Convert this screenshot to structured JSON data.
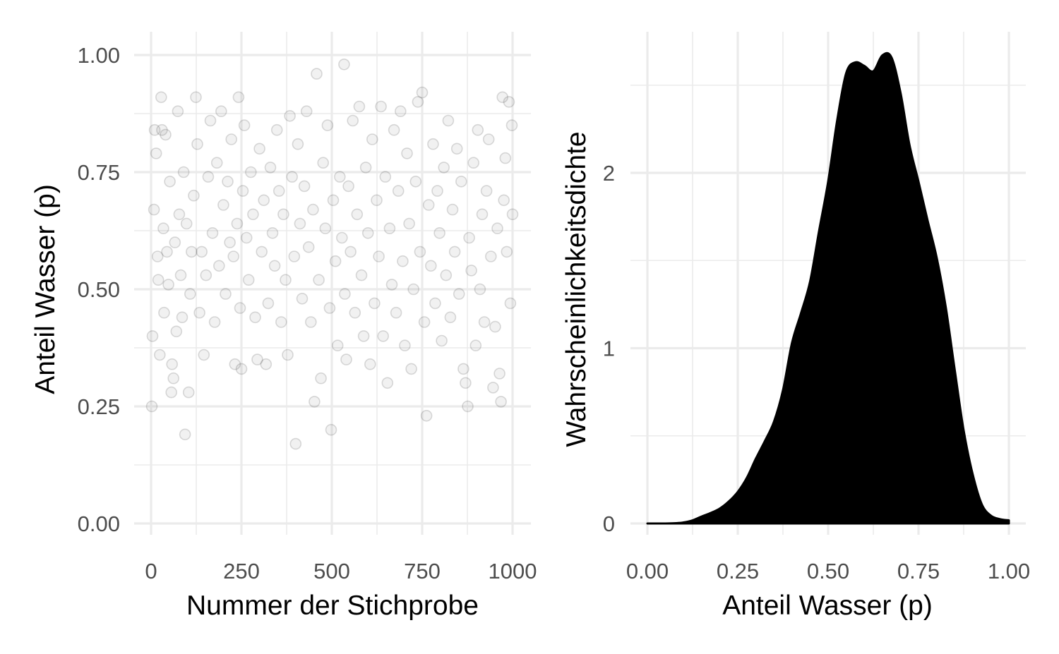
{
  "chart_data": [
    {
      "type": "scatter",
      "xlabel": "Nummer der Stichprobe",
      "ylabel": "Anteil Wasser  (p)",
      "xlim": [
        0,
        1000
      ],
      "ylim": [
        0,
        1
      ],
      "x_ticks": [
        "0",
        "250",
        "500",
        "750",
        "1000"
      ],
      "y_ticks": [
        "0.00",
        "0.25",
        "0.50",
        "0.75",
        "1.00"
      ],
      "grid": true,
      "point_opacity": 0.1,
      "sample_count": 1000,
      "points": [
        [
          2,
          0.25
        ],
        [
          4,
          0.4
        ],
        [
          8,
          0.67
        ],
        [
          10,
          0.84
        ],
        [
          14,
          0.79
        ],
        [
          18,
          0.57
        ],
        [
          20,
          0.52
        ],
        [
          24,
          0.36
        ],
        [
          28,
          0.91
        ],
        [
          30,
          0.84
        ],
        [
          34,
          0.63
        ],
        [
          36,
          0.45
        ],
        [
          40,
          0.83
        ],
        [
          44,
          0.58
        ],
        [
          48,
          0.51
        ],
        [
          52,
          0.73
        ],
        [
          56,
          0.28
        ],
        [
          58,
          0.34
        ],
        [
          62,
          0.31
        ],
        [
          66,
          0.6
        ],
        [
          70,
          0.41
        ],
        [
          74,
          0.88
        ],
        [
          78,
          0.66
        ],
        [
          82,
          0.53
        ],
        [
          86,
          0.44
        ],
        [
          90,
          0.75
        ],
        [
          94,
          0.19
        ],
        [
          98,
          0.64
        ],
        [
          104,
          0.28
        ],
        [
          108,
          0.49
        ],
        [
          112,
          0.58
        ],
        [
          118,
          0.7
        ],
        [
          124,
          0.91
        ],
        [
          128,
          0.81
        ],
        [
          134,
          0.45
        ],
        [
          140,
          0.58
        ],
        [
          146,
          0.36
        ],
        [
          152,
          0.53
        ],
        [
          158,
          0.74
        ],
        [
          164,
          0.86
        ],
        [
          170,
          0.62
        ],
        [
          176,
          0.43
        ],
        [
          182,
          0.77
        ],
        [
          188,
          0.55
        ],
        [
          194,
          0.88
        ],
        [
          200,
          0.68
        ],
        [
          206,
          0.49
        ],
        [
          212,
          0.73
        ],
        [
          218,
          0.6
        ],
        [
          222,
          0.82
        ],
        [
          228,
          0.57
        ],
        [
          232,
          0.34
        ],
        [
          238,
          0.64
        ],
        [
          242,
          0.91
        ],
        [
          246,
          0.46
        ],
        [
          250,
          0.33
        ],
        [
          254,
          0.71
        ],
        [
          258,
          0.85
        ],
        [
          264,
          0.61
        ],
        [
          270,
          0.52
        ],
        [
          276,
          0.75
        ],
        [
          282,
          0.66
        ],
        [
          288,
          0.44
        ],
        [
          294,
          0.35
        ],
        [
          300,
          0.8
        ],
        [
          306,
          0.58
        ],
        [
          312,
          0.69
        ],
        [
          318,
          0.34
        ],
        [
          324,
          0.47
        ],
        [
          330,
          0.76
        ],
        [
          336,
          0.62
        ],
        [
          342,
          0.55
        ],
        [
          348,
          0.84
        ],
        [
          354,
          0.71
        ],
        [
          360,
          0.43
        ],
        [
          366,
          0.66
        ],
        [
          372,
          0.52
        ],
        [
          378,
          0.36
        ],
        [
          384,
          0.87
        ],
        [
          390,
          0.74
        ],
        [
          396,
          0.57
        ],
        [
          400,
          0.17
        ],
        [
          406,
          0.81
        ],
        [
          412,
          0.64
        ],
        [
          418,
          0.48
        ],
        [
          424,
          0.72
        ],
        [
          430,
          0.88
        ],
        [
          436,
          0.59
        ],
        [
          442,
          0.43
        ],
        [
          448,
          0.67
        ],
        [
          452,
          0.26
        ],
        [
          458,
          0.96
        ],
        [
          464,
          0.52
        ],
        [
          470,
          0.31
        ],
        [
          476,
          0.77
        ],
        [
          482,
          0.63
        ],
        [
          488,
          0.85
        ],
        [
          494,
          0.46
        ],
        [
          498,
          0.2
        ],
        [
          504,
          0.69
        ],
        [
          510,
          0.56
        ],
        [
          516,
          0.38
        ],
        [
          522,
          0.74
        ],
        [
          528,
          0.61
        ],
        [
          534,
          0.98
        ],
        [
          536,
          0.49
        ],
        [
          540,
          0.35
        ],
        [
          546,
          0.72
        ],
        [
          552,
          0.58
        ],
        [
          558,
          0.86
        ],
        [
          564,
          0.45
        ],
        [
          570,
          0.66
        ],
        [
          576,
          0.89
        ],
        [
          582,
          0.53
        ],
        [
          588,
          0.4
        ],
        [
          594,
          0.76
        ],
        [
          600,
          0.62
        ],
        [
          606,
          0.34
        ],
        [
          612,
          0.82
        ],
        [
          618,
          0.47
        ],
        [
          624,
          0.69
        ],
        [
          630,
          0.57
        ],
        [
          636,
          0.89
        ],
        [
          642,
          0.4
        ],
        [
          648,
          0.74
        ],
        [
          654,
          0.3
        ],
        [
          660,
          0.63
        ],
        [
          666,
          0.51
        ],
        [
          672,
          0.84
        ],
        [
          678,
          0.45
        ],
        [
          684,
          0.71
        ],
        [
          690,
          0.88
        ],
        [
          696,
          0.56
        ],
        [
          702,
          0.38
        ],
        [
          708,
          0.79
        ],
        [
          714,
          0.64
        ],
        [
          720,
          0.33
        ],
        [
          726,
          0.5
        ],
        [
          732,
          0.73
        ],
        [
          738,
          0.9
        ],
        [
          744,
          0.58
        ],
        [
          750,
          0.92
        ],
        [
          756,
          0.43
        ],
        [
          762,
          0.23
        ],
        [
          768,
          0.68
        ],
        [
          774,
          0.55
        ],
        [
          780,
          0.81
        ],
        [
          786,
          0.47
        ],
        [
          792,
          0.71
        ],
        [
          798,
          0.62
        ],
        [
          804,
          0.39
        ],
        [
          810,
          0.76
        ],
        [
          816,
          0.53
        ],
        [
          822,
          0.86
        ],
        [
          828,
          0.44
        ],
        [
          834,
          0.67
        ],
        [
          840,
          0.58
        ],
        [
          846,
          0.8
        ],
        [
          852,
          0.49
        ],
        [
          858,
          0.73
        ],
        [
          864,
          0.33
        ],
        [
          870,
          0.3
        ],
        [
          876,
          0.25
        ],
        [
          880,
          0.61
        ],
        [
          886,
          0.54
        ],
        [
          892,
          0.77
        ],
        [
          898,
          0.38
        ],
        [
          904,
          0.84
        ],
        [
          910,
          0.5
        ],
        [
          916,
          0.66
        ],
        [
          922,
          0.43
        ],
        [
          928,
          0.71
        ],
        [
          934,
          0.82
        ],
        [
          940,
          0.57
        ],
        [
          946,
          0.29
        ],
        [
          952,
          0.42
        ],
        [
          958,
          0.63
        ],
        [
          964,
          0.32
        ],
        [
          968,
          0.26
        ],
        [
          972,
          0.91
        ],
        [
          976,
          0.69
        ],
        [
          980,
          0.78
        ],
        [
          984,
          0.58
        ],
        [
          990,
          0.9
        ],
        [
          994,
          0.47
        ],
        [
          998,
          0.85
        ],
        [
          1000,
          0.66
        ]
      ]
    },
    {
      "type": "area",
      "xlabel": "Anteil Wasser (p)",
      "ylabel": "Wahrscheinlichkeitsdichte",
      "xlim": [
        0,
        1
      ],
      "ylim": [
        0,
        2.7
      ],
      "x_ticks": [
        "0.00",
        "0.25",
        "0.50",
        "0.75",
        "1.00"
      ],
      "y_ticks": [
        "0",
        "1",
        "2"
      ],
      "grid": true,
      "fill": "#000000",
      "x": [
        0.0,
        0.05,
        0.08,
        0.1,
        0.125,
        0.15,
        0.175,
        0.2,
        0.225,
        0.25,
        0.275,
        0.3,
        0.325,
        0.35,
        0.375,
        0.4,
        0.425,
        0.45,
        0.475,
        0.5,
        0.525,
        0.55,
        0.575,
        0.6,
        0.625,
        0.65,
        0.675,
        0.7,
        0.725,
        0.75,
        0.775,
        0.8,
        0.825,
        0.85,
        0.875,
        0.9,
        0.925,
        0.95,
        0.975,
        1.0
      ],
      "y": [
        0.0,
        0.0,
        0.002,
        0.006,
        0.018,
        0.04,
        0.06,
        0.085,
        0.125,
        0.18,
        0.26,
        0.37,
        0.47,
        0.58,
        0.76,
        1.03,
        1.2,
        1.38,
        1.67,
        1.95,
        2.3,
        2.57,
        2.63,
        2.61,
        2.58,
        2.67,
        2.66,
        2.46,
        2.16,
        1.95,
        1.73,
        1.52,
        1.24,
        0.88,
        0.53,
        0.28,
        0.11,
        0.045,
        0.025,
        0.018
      ]
    }
  ]
}
